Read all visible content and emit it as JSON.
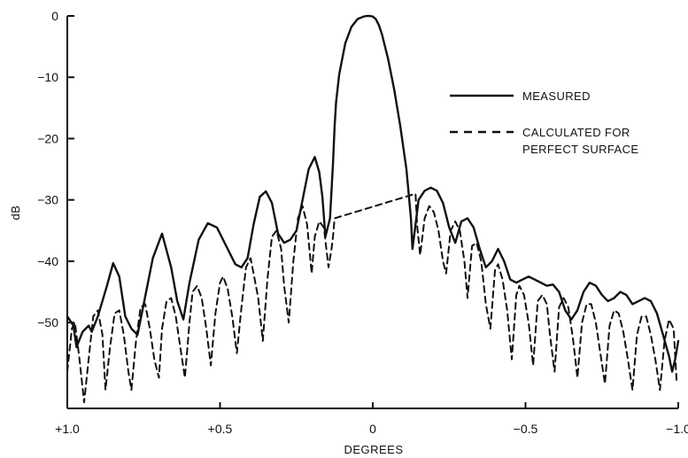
{
  "chart_data": {
    "type": "line",
    "xlabel": "DEGREES",
    "ylabel": "dB",
    "xlim": [
      1.0,
      -1.0
    ],
    "ylim": [
      -64,
      0
    ],
    "x_ticks": [
      {
        "value": 1.0,
        "label": "+1.0"
      },
      {
        "value": 0.5,
        "label": "+0.5"
      },
      {
        "value": 0.0,
        "label": "0"
      },
      {
        "value": -0.5,
        "label": "−0.5"
      },
      {
        "value": -1.0,
        "label": "−1.0"
      }
    ],
    "y_ticks": [
      {
        "value": 0,
        "label": "0"
      },
      {
        "value": -10,
        "label": "−10"
      },
      {
        "value": -20,
        "label": "−20"
      },
      {
        "value": -30,
        "label": "−30"
      },
      {
        "value": -40,
        "label": "−40"
      },
      {
        "value": -50,
        "label": "−50"
      }
    ],
    "grid": false,
    "legend_position": "top-right",
    "series": [
      {
        "name": "MEASURED",
        "style": "solid",
        "x": [
          1.0,
          0.98,
          0.97,
          0.95,
          0.93,
          0.92,
          0.9,
          0.87,
          0.85,
          0.83,
          0.81,
          0.79,
          0.77,
          0.75,
          0.72,
          0.69,
          0.66,
          0.64,
          0.62,
          0.6,
          0.57,
          0.54,
          0.51,
          0.48,
          0.45,
          0.43,
          0.41,
          0.39,
          0.37,
          0.35,
          0.33,
          0.31,
          0.29,
          0.27,
          0.25,
          0.23,
          0.21,
          0.19,
          0.175,
          0.165,
          0.155,
          0.14,
          0.13,
          0.125,
          0.12,
          0.11,
          0.09,
          0.07,
          0.05,
          0.03,
          0.02,
          0.01,
          0.0,
          -0.01,
          -0.02,
          -0.03,
          -0.05,
          -0.07,
          -0.09,
          -0.11,
          -0.125,
          -0.13,
          -0.14,
          -0.15,
          -0.17,
          -0.19,
          -0.21,
          -0.23,
          -0.25,
          -0.27,
          -0.29,
          -0.31,
          -0.33,
          -0.35,
          -0.37,
          -0.39,
          -0.41,
          -0.43,
          -0.45,
          -0.47,
          -0.49,
          -0.51,
          -0.53,
          -0.55,
          -0.57,
          -0.59,
          -0.61,
          -0.63,
          -0.65,
          -0.67,
          -0.69,
          -0.71,
          -0.73,
          -0.75,
          -0.77,
          -0.79,
          -0.81,
          -0.83,
          -0.85,
          -0.87,
          -0.89,
          -0.91,
          -0.93,
          -0.95,
          -0.97,
          -0.98,
          -0.99,
          -1.0
        ],
        "y": [
          -49.0,
          -50.5,
          -54.0,
          -51.5,
          -50.5,
          -51.5,
          -49.0,
          -44.0,
          -40.3,
          -42.5,
          -49.0,
          -51.0,
          -52.0,
          -47.0,
          -39.5,
          -35.5,
          -41.0,
          -46.5,
          -49.5,
          -43.5,
          -36.5,
          -33.8,
          -34.5,
          -37.5,
          -40.5,
          -41.0,
          -39.5,
          -34.0,
          -29.5,
          -28.6,
          -30.5,
          -35.5,
          -37.0,
          -36.5,
          -35.0,
          -30.0,
          -25.0,
          -23.0,
          -25.5,
          -29.5,
          -36.0,
          -33.0,
          -24.0,
          -18.0,
          -14.0,
          -9.5,
          -4.5,
          -1.8,
          -0.5,
          -0.1,
          0.0,
          0.0,
          -0.1,
          -0.5,
          -1.5,
          -3.0,
          -7.0,
          -12.0,
          -18.0,
          -25.0,
          -33.0,
          -38.0,
          -34.0,
          -30.0,
          -28.5,
          -28.0,
          -28.5,
          -30.5,
          -34.5,
          -37.0,
          -33.5,
          -33.0,
          -34.5,
          -38.0,
          -41.0,
          -40.0,
          -38.0,
          -40.0,
          -43.0,
          -43.5,
          -43.0,
          -42.5,
          -43.0,
          -43.5,
          -44.0,
          -43.8,
          -45.0,
          -48.0,
          -49.5,
          -48.0,
          -45.0,
          -43.5,
          -44.0,
          -45.5,
          -46.5,
          -46.0,
          -45.0,
          -45.5,
          -47.0,
          -46.5,
          -46.0,
          -46.5,
          -48.5,
          -52.0,
          -55.5,
          -58.0,
          -56.0,
          -53.0
        ]
      },
      {
        "name": "CALCULATED FOR PERFECT SURFACE",
        "style": "dashed",
        "x": [
          1.0,
          0.985,
          0.975,
          0.96,
          0.945,
          0.93,
          0.915,
          0.9,
          0.885,
          0.875,
          0.86,
          0.845,
          0.83,
          0.815,
          0.8,
          0.79,
          0.775,
          0.76,
          0.745,
          0.73,
          0.715,
          0.7,
          0.69,
          0.675,
          0.66,
          0.645,
          0.63,
          0.615,
          0.6,
          0.59,
          0.575,
          0.56,
          0.545,
          0.53,
          0.515,
          0.5,
          0.49,
          0.475,
          0.46,
          0.445,
          0.43,
          0.415,
          0.4,
          0.39,
          0.375,
          0.36,
          0.345,
          0.33,
          0.315,
          0.3,
          0.29,
          0.275,
          0.26,
          0.245,
          0.23,
          0.215,
          0.2,
          0.19,
          0.175,
          0.16,
          0.145,
          0.135,
          0.13,
          0.125,
          -0.14,
          -0.145,
          -0.155,
          -0.17,
          -0.185,
          -0.2,
          -0.215,
          -0.23,
          -0.24,
          -0.255,
          -0.27,
          -0.285,
          -0.3,
          -0.31,
          -0.325,
          -0.34,
          -0.355,
          -0.37,
          -0.385,
          -0.4,
          -0.41,
          -0.425,
          -0.44,
          -0.455,
          -0.47,
          -0.48,
          -0.495,
          -0.51,
          -0.525,
          -0.54,
          -0.555,
          -0.57,
          -0.58,
          -0.595,
          -0.61,
          -0.625,
          -0.64,
          -0.655,
          -0.67,
          -0.685,
          -0.7,
          -0.715,
          -0.73,
          -0.745,
          -0.76,
          -0.775,
          -0.79,
          -0.805,
          -0.82,
          -0.835,
          -0.85,
          -0.865,
          -0.88,
          -0.895,
          -0.91,
          -0.925,
          -0.94,
          -0.955,
          -0.97,
          -0.985,
          -0.995
        ],
        "y": [
          -58.0,
          -51.0,
          -50.0,
          -56.0,
          -63.0,
          -56.0,
          -49.0,
          -48.0,
          -52.0,
          -61.0,
          -54.0,
          -48.5,
          -48.0,
          -52.0,
          -58.0,
          -61.0,
          -53.0,
          -47.5,
          -47.0,
          -51.0,
          -56.0,
          -59.0,
          -51.0,
          -46.5,
          -46.0,
          -49.0,
          -54.0,
          -59.0,
          -50.0,
          -45.0,
          -44.0,
          -46.0,
          -51.0,
          -57.0,
          -48.5,
          -43.5,
          -42.5,
          -44.5,
          -49.0,
          -55.0,
          -47.5,
          -41.0,
          -39.5,
          -42.0,
          -46.0,
          -53.0,
          -43.0,
          -36.0,
          -35.0,
          -38.0,
          -44.0,
          -50.0,
          -40.0,
          -33.0,
          -31.0,
          -34.0,
          -42.0,
          -36.0,
          -33.5,
          -34.5,
          -41.0,
          -38.0,
          -36.0,
          -33.0,
          -29.0,
          -34.0,
          -39.0,
          -33.0,
          -31.0,
          -32.0,
          -35.0,
          -40.0,
          -42.0,
          -35.0,
          -33.5,
          -35.0,
          -40.0,
          -46.0,
          -37.5,
          -37.0,
          -40.0,
          -47.0,
          -51.0,
          -41.5,
          -40.5,
          -43.0,
          -48.0,
          -56.0,
          -45.5,
          -44.0,
          -45.5,
          -50.0,
          -57.0,
          -46.5,
          -45.5,
          -47.0,
          -52.0,
          -58.0,
          -47.5,
          -46.0,
          -47.5,
          -52.5,
          -59.0,
          -50.0,
          -47.0,
          -47.0,
          -50.0,
          -55.0,
          -60.0,
          -50.5,
          -48.0,
          -48.5,
          -51.5,
          -56.0,
          -61.0,
          -52.0,
          -49.0,
          -49.0,
          -52.0,
          -56.0,
          -61.0,
          -53.0,
          -49.5,
          -51.0,
          -60.0
        ]
      }
    ]
  },
  "legend": {
    "measured_label": "MEASURED",
    "calculated_label_line1": "CALCULATED FOR",
    "calculated_label_line2": "PERFECT SURFACE"
  }
}
